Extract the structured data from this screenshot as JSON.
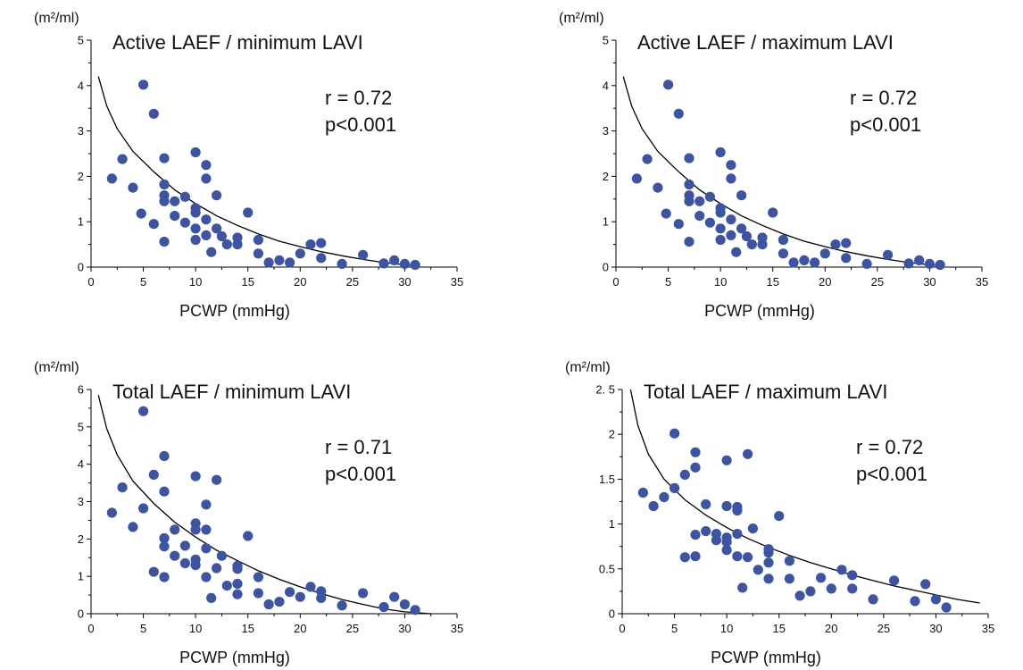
{
  "chart_data": [
    {
      "type": "scatter",
      "title": "Active LAEF / minimum LAVI",
      "ylabel": "(m²/ml)",
      "xlabel": "PCWP (mmHg)",
      "r_text": "r = 0.72",
      "p_text": "p<0.001",
      "xlim": [
        0,
        35
      ],
      "ylim": [
        0,
        5
      ],
      "x_ticks": [
        "0",
        "5",
        "10",
        "15",
        "20",
        "25",
        "30",
        "35"
      ],
      "x_tick_values": [
        0,
        5,
        10,
        15,
        20,
        25,
        30,
        35
      ],
      "y_ticks": [
        "0",
        "1",
        "2",
        "3",
        "4",
        "5"
      ],
      "y_tick_values": [
        0,
        1,
        2,
        3,
        4,
        5
      ],
      "fit_curve": [
        [
          0.7,
          4.2
        ],
        [
          1.5,
          3.55
        ],
        [
          2.5,
          3.05
        ],
        [
          4,
          2.55
        ],
        [
          6,
          2.1
        ],
        [
          8,
          1.7
        ],
        [
          10,
          1.4
        ],
        [
          12,
          1.13
        ],
        [
          14,
          0.92
        ],
        [
          16,
          0.73
        ],
        [
          18,
          0.57
        ],
        [
          20,
          0.45
        ],
        [
          22,
          0.34
        ],
        [
          24,
          0.25
        ],
        [
          26,
          0.17
        ],
        [
          28,
          0.1
        ],
        [
          30,
          0.05
        ],
        [
          31,
          0.03
        ]
      ],
      "points": [
        [
          2,
          1.95
        ],
        [
          3,
          2.38
        ],
        [
          4,
          1.75
        ],
        [
          4.8,
          1.18
        ],
        [
          5,
          4.02
        ],
        [
          6,
          3.38
        ],
        [
          6,
          0.95
        ],
        [
          7,
          2.4
        ],
        [
          7,
          1.82
        ],
        [
          7,
          1.58
        ],
        [
          7,
          1.45
        ],
        [
          7,
          0.56
        ],
        [
          8,
          1.45
        ],
        [
          8,
          1.13
        ],
        [
          9,
          1.55
        ],
        [
          9,
          0.98
        ],
        [
          10,
          2.53
        ],
        [
          10,
          1.3
        ],
        [
          10,
          1.2
        ],
        [
          10,
          0.85
        ],
        [
          10,
          0.6
        ],
        [
          11,
          2.25
        ],
        [
          11,
          1.95
        ],
        [
          11,
          1.05
        ],
        [
          11,
          0.7
        ],
        [
          11.5,
          0.33
        ],
        [
          12,
          1.58
        ],
        [
          12,
          0.85
        ],
        [
          12.5,
          0.68
        ],
        [
          13,
          0.5
        ],
        [
          14,
          0.65
        ],
        [
          14,
          0.5
        ],
        [
          15,
          1.2
        ],
        [
          16,
          0.6
        ],
        [
          16,
          0.3
        ],
        [
          17,
          0.1
        ],
        [
          18,
          0.15
        ],
        [
          19,
          0.1
        ],
        [
          20,
          0.3
        ],
        [
          21,
          0.5
        ],
        [
          22,
          0.53
        ],
        [
          22,
          0.2
        ],
        [
          24,
          0.07
        ],
        [
          26,
          0.27
        ],
        [
          28,
          0.08
        ],
        [
          29,
          0.15
        ],
        [
          30,
          0.07
        ],
        [
          31,
          0.05
        ]
      ]
    },
    {
      "type": "scatter",
      "title": "Active LAEF / maximum LAVI",
      "ylabel": "(m²/ml)",
      "xlabel": "PCWP (mmHg)",
      "r_text": "r = 0.72",
      "p_text": "p<0.001",
      "xlim": [
        0,
        35
      ],
      "ylim": [
        0,
        5
      ],
      "x_ticks": [
        "0",
        "5",
        "10",
        "15",
        "20",
        "25",
        "30",
        "35"
      ],
      "x_tick_values": [
        0,
        5,
        10,
        15,
        20,
        25,
        30,
        35
      ],
      "y_ticks": [
        "0",
        "1",
        "2",
        "3",
        "4",
        "5"
      ],
      "y_tick_values": [
        0,
        1,
        2,
        3,
        4,
        5
      ],
      "fit_curve": [
        [
          0.7,
          4.2
        ],
        [
          1.5,
          3.55
        ],
        [
          2.5,
          3.05
        ],
        [
          4,
          2.55
        ],
        [
          6,
          2.1
        ],
        [
          8,
          1.7
        ],
        [
          10,
          1.4
        ],
        [
          12,
          1.13
        ],
        [
          14,
          0.92
        ],
        [
          16,
          0.73
        ],
        [
          18,
          0.57
        ],
        [
          20,
          0.45
        ],
        [
          22,
          0.34
        ],
        [
          24,
          0.25
        ],
        [
          26,
          0.17
        ],
        [
          28,
          0.1
        ],
        [
          30,
          0.05
        ],
        [
          31,
          0.03
        ]
      ],
      "points": [
        [
          2,
          1.95
        ],
        [
          3,
          2.38
        ],
        [
          4,
          1.75
        ],
        [
          4.8,
          1.18
        ],
        [
          5,
          4.02
        ],
        [
          6,
          3.38
        ],
        [
          6,
          0.95
        ],
        [
          7,
          2.4
        ],
        [
          7,
          1.82
        ],
        [
          7,
          1.58
        ],
        [
          7,
          1.45
        ],
        [
          7,
          0.56
        ],
        [
          8,
          1.45
        ],
        [
          8,
          1.13
        ],
        [
          9,
          1.55
        ],
        [
          9,
          0.98
        ],
        [
          10,
          2.53
        ],
        [
          10,
          1.3
        ],
        [
          10,
          1.2
        ],
        [
          10,
          0.85
        ],
        [
          10,
          0.6
        ],
        [
          11,
          2.25
        ],
        [
          11,
          1.95
        ],
        [
          11,
          1.05
        ],
        [
          11,
          0.7
        ],
        [
          11.5,
          0.33
        ],
        [
          12,
          1.58
        ],
        [
          12,
          0.85
        ],
        [
          12.5,
          0.68
        ],
        [
          13,
          0.5
        ],
        [
          14,
          0.65
        ],
        [
          14,
          0.5
        ],
        [
          15,
          1.2
        ],
        [
          16,
          0.6
        ],
        [
          16,
          0.3
        ],
        [
          17,
          0.1
        ],
        [
          18,
          0.15
        ],
        [
          19,
          0.1
        ],
        [
          20,
          0.3
        ],
        [
          21,
          0.5
        ],
        [
          22,
          0.53
        ],
        [
          22,
          0.2
        ],
        [
          24,
          0.07
        ],
        [
          26,
          0.27
        ],
        [
          28,
          0.08
        ],
        [
          29,
          0.15
        ],
        [
          30,
          0.07
        ],
        [
          31,
          0.05
        ]
      ]
    },
    {
      "type": "scatter",
      "title": "Total LAEF / minimum LAVI",
      "ylabel": "(m²/ml)",
      "xlabel": "PCWP (mmHg)",
      "r_text": "r = 0.71",
      "p_text": "p<0.001",
      "xlim": [
        0,
        35
      ],
      "ylim": [
        0,
        6
      ],
      "x_ticks": [
        "0",
        "5",
        "10",
        "15",
        "20",
        "25",
        "30",
        "35"
      ],
      "x_tick_values": [
        0,
        5,
        10,
        15,
        20,
        25,
        30,
        35
      ],
      "y_ticks": [
        "0",
        "1",
        "2",
        "3",
        "4",
        "5",
        "6"
      ],
      "y_tick_values": [
        0,
        1,
        2,
        3,
        4,
        5,
        6
      ],
      "fit_curve": [
        [
          0.7,
          5.85
        ],
        [
          1.5,
          4.95
        ],
        [
          2.5,
          4.25
        ],
        [
          4,
          3.55
        ],
        [
          6,
          2.95
        ],
        [
          8,
          2.45
        ],
        [
          10,
          2.05
        ],
        [
          12,
          1.7
        ],
        [
          14,
          1.42
        ],
        [
          16,
          1.15
        ],
        [
          18,
          0.92
        ],
        [
          20,
          0.72
        ],
        [
          22,
          0.54
        ],
        [
          24,
          0.38
        ],
        [
          26,
          0.25
        ],
        [
          28,
          0.13
        ],
        [
          30,
          0.05
        ],
        [
          32.5,
          0
        ]
      ],
      "points": [
        [
          2,
          2.7
        ],
        [
          3,
          3.38
        ],
        [
          4,
          2.32
        ],
        [
          5,
          5.42
        ],
        [
          5,
          2.82
        ],
        [
          6,
          3.72
        ],
        [
          6,
          1.12
        ],
        [
          7,
          4.22
        ],
        [
          7,
          3.27
        ],
        [
          7,
          2.02
        ],
        [
          7,
          1.8
        ],
        [
          7,
          0.98
        ],
        [
          8,
          2.25
        ],
        [
          8,
          1.55
        ],
        [
          9,
          1.82
        ],
        [
          9,
          1.35
        ],
        [
          10,
          3.68
        ],
        [
          10,
          2.42
        ],
        [
          10,
          2.25
        ],
        [
          10,
          1.45
        ],
        [
          10,
          1.3
        ],
        [
          11,
          2.92
        ],
        [
          11,
          2.25
        ],
        [
          11,
          1.75
        ],
        [
          11,
          0.98
        ],
        [
          11.5,
          0.42
        ],
        [
          12,
          3.58
        ],
        [
          12,
          1.22
        ],
        [
          12.5,
          1.55
        ],
        [
          13,
          0.75
        ],
        [
          14,
          1.28
        ],
        [
          14,
          1.2
        ],
        [
          14,
          0.8
        ],
        [
          14,
          0.52
        ],
        [
          15,
          2.08
        ],
        [
          16,
          0.98
        ],
        [
          16,
          0.55
        ],
        [
          17,
          0.25
        ],
        [
          18,
          0.32
        ],
        [
          19,
          0.58
        ],
        [
          20,
          0.45
        ],
        [
          21,
          0.72
        ],
        [
          22,
          0.6
        ],
        [
          22,
          0.42
        ],
        [
          24,
          0.22
        ],
        [
          26,
          0.55
        ],
        [
          28,
          0.18
        ],
        [
          29,
          0.45
        ],
        [
          30,
          0.25
        ],
        [
          31,
          0.1
        ]
      ]
    },
    {
      "type": "scatter",
      "title": "Total LAEF / maximum LAVI",
      "ylabel": "(m²/ml)",
      "xlabel": "PCWP (mmHg)",
      "r_text": "r = 0.72",
      "p_text": "p<0.001",
      "xlim": [
        0,
        35
      ],
      "ylim": [
        0,
        2.5
      ],
      "x_ticks": [
        "0",
        "5",
        "10",
        "15",
        "20",
        "25",
        "30",
        "35"
      ],
      "x_tick_values": [
        0,
        5,
        10,
        15,
        20,
        25,
        30,
        35
      ],
      "y_ticks": [
        "0",
        "0.5",
        "1",
        "1.5",
        "2",
        "2. 5"
      ],
      "y_tick_values": [
        0,
        0.5,
        1,
        1.5,
        2,
        2.5
      ],
      "fit_curve": [
        [
          0.8,
          2.5
        ],
        [
          1.5,
          2.1
        ],
        [
          2.5,
          1.78
        ],
        [
          4,
          1.5
        ],
        [
          6,
          1.27
        ],
        [
          8,
          1.1
        ],
        [
          10,
          0.96
        ],
        [
          12,
          0.84
        ],
        [
          14,
          0.74
        ],
        [
          16,
          0.65
        ],
        [
          18,
          0.57
        ],
        [
          20,
          0.5
        ],
        [
          22,
          0.43
        ],
        [
          24,
          0.37
        ],
        [
          26,
          0.31
        ],
        [
          28,
          0.26
        ],
        [
          30,
          0.21
        ],
        [
          32,
          0.16
        ],
        [
          34.2,
          0.12
        ]
      ],
      "points": [
        [
          2,
          1.35
        ],
        [
          3,
          1.2
        ],
        [
          4,
          1.3
        ],
        [
          5,
          2.01
        ],
        [
          5,
          1.4
        ],
        [
          6,
          1.55
        ],
        [
          6,
          0.63
        ],
        [
          7,
          1.8
        ],
        [
          7,
          1.63
        ],
        [
          7,
          0.88
        ],
        [
          7,
          0.64
        ],
        [
          8,
          1.22
        ],
        [
          8,
          0.92
        ],
        [
          9,
          0.89
        ],
        [
          9,
          0.82
        ],
        [
          10,
          1.71
        ],
        [
          10,
          1.2
        ],
        [
          10,
          0.85
        ],
        [
          10,
          0.8
        ],
        [
          10,
          0.71
        ],
        [
          11,
          1.19
        ],
        [
          11,
          1.15
        ],
        [
          11,
          0.89
        ],
        [
          11,
          0.64
        ],
        [
          11.5,
          0.29
        ],
        [
          12,
          1.78
        ],
        [
          12,
          0.63
        ],
        [
          12.5,
          0.95
        ],
        [
          13,
          0.49
        ],
        [
          14,
          0.72
        ],
        [
          14,
          0.68
        ],
        [
          14,
          0.57
        ],
        [
          14,
          0.39
        ],
        [
          15,
          1.09
        ],
        [
          16,
          0.59
        ],
        [
          16,
          0.39
        ],
        [
          17,
          0.2
        ],
        [
          18,
          0.25
        ],
        [
          19,
          0.4
        ],
        [
          20,
          0.28
        ],
        [
          21,
          0.49
        ],
        [
          22,
          0.43
        ],
        [
          22,
          0.28
        ],
        [
          24,
          0.16
        ],
        [
          26,
          0.37
        ],
        [
          28,
          0.14
        ],
        [
          29,
          0.33
        ],
        [
          30,
          0.16
        ],
        [
          31,
          0.07
        ]
      ]
    }
  ],
  "style": {
    "point_color": "#3c54a3",
    "line_color": "#000000"
  }
}
